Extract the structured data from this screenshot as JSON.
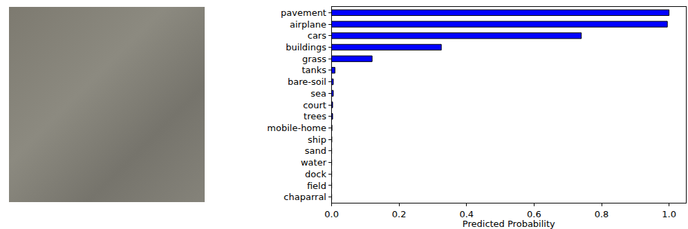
{
  "chart_data": {
    "type": "bar",
    "orientation": "horizontal",
    "x_label": "Predicted Probability",
    "categories": [
      "pavement",
      "airplane",
      "cars",
      "buildings",
      "grass",
      "tanks",
      "bare-soil",
      "sea",
      "court",
      "trees",
      "mobile-home",
      "ship",
      "sand",
      "water",
      "dock",
      "field",
      "chaparral"
    ],
    "values": [
      1.0,
      0.995,
      0.74,
      0.325,
      0.12,
      0.01,
      0.005,
      0.005,
      0.003,
      0.003,
      0.001,
      0.0005,
      0,
      0,
      0,
      0,
      0
    ],
    "color": "#0000ff",
    "xlim": [
      0,
      1.05
    ],
    "xticks": [
      {
        "value": 0,
        "label": "0.0"
      },
      0.2,
      0.4,
      0.6,
      0.8,
      {
        "value": 1,
        "label": "1.0"
      }
    ],
    "grid": false
  }
}
